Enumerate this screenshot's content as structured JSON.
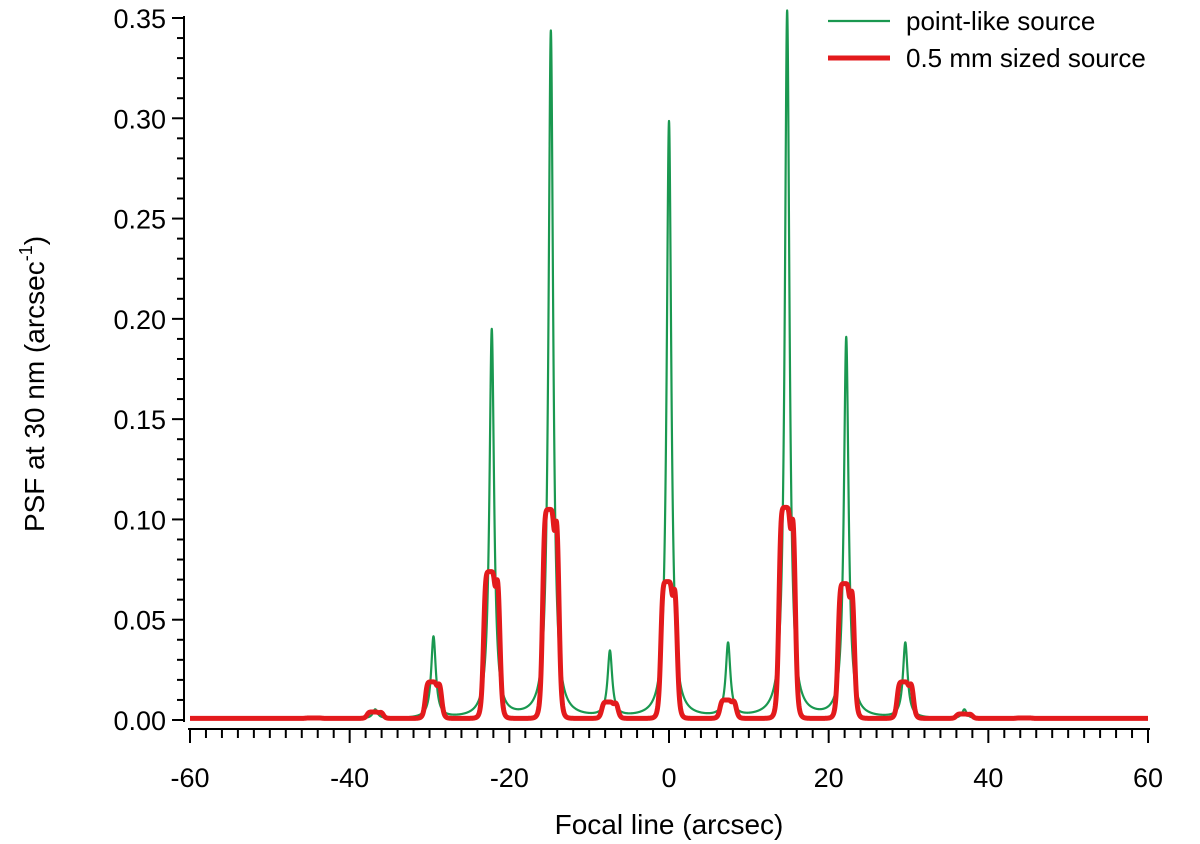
{
  "chart_data": {
    "type": "line",
    "title": "",
    "xlabel": "Focal line (arcsec)",
    "ylabel": {
      "main": "PSF at 30 nm (arcsec",
      "superscript": "-1",
      "close": ")"
    },
    "xlim": [
      -60,
      60
    ],
    "ylim": [
      0,
      0.35
    ],
    "x_ticks": [
      -60,
      -40,
      -20,
      0,
      20,
      40,
      60
    ],
    "x_tick_labels": [
      "-60",
      "-40",
      "-20",
      "0",
      "20",
      "40",
      "60"
    ],
    "y_ticks": [
      0,
      0.05,
      0.1,
      0.15,
      0.2,
      0.25,
      0.3,
      0.35
    ],
    "y_tick_labels": [
      "0.00",
      "0.05",
      "0.10",
      "0.15",
      "0.20",
      "0.25",
      "0.30",
      "0.35"
    ],
    "grid": false,
    "legend_position": "top-right",
    "series": [
      {
        "name": "point-like source",
        "color": "#1a9850",
        "style": "thin",
        "baseline": 0.0005,
        "peaks": [
          {
            "x": -44.5,
            "y": 0.0008
          },
          {
            "x": -36.8,
            "y": 0.005
          },
          {
            "x": -29.5,
            "y": 0.041
          },
          {
            "x": -22.2,
            "y": 0.194
          },
          {
            "x": -14.8,
            "y": 0.343
          },
          {
            "x": -7.4,
            "y": 0.033
          },
          {
            "x": 0.0,
            "y": 0.298
          },
          {
            "x": 7.4,
            "y": 0.037
          },
          {
            "x": 14.8,
            "y": 0.353
          },
          {
            "x": 22.2,
            "y": 0.19
          },
          {
            "x": 29.6,
            "y": 0.038
          },
          {
            "x": 37.0,
            "y": 0.005
          },
          {
            "x": 44.5,
            "y": 0.0008
          }
        ]
      },
      {
        "name": "0.5 mm sized source",
        "color": "#e31a1c",
        "style": "thick",
        "baseline": 0.0008,
        "peaks": [
          {
            "x": -44.5,
            "y": 0.001
          },
          {
            "x": -36.8,
            "y": 0.004
          },
          {
            "x": -29.5,
            "y": 0.019
          },
          {
            "x": -22.2,
            "y": 0.074
          },
          {
            "x": -14.8,
            "y": 0.105
          },
          {
            "x": -7.4,
            "y": 0.009
          },
          {
            "x": 0.0,
            "y": 0.069
          },
          {
            "x": 7.4,
            "y": 0.01
          },
          {
            "x": 14.8,
            "y": 0.106
          },
          {
            "x": 22.2,
            "y": 0.068
          },
          {
            "x": 29.6,
            "y": 0.019
          },
          {
            "x": 37.0,
            "y": 0.003
          },
          {
            "x": 44.5,
            "y": 0.001
          }
        ]
      }
    ]
  }
}
